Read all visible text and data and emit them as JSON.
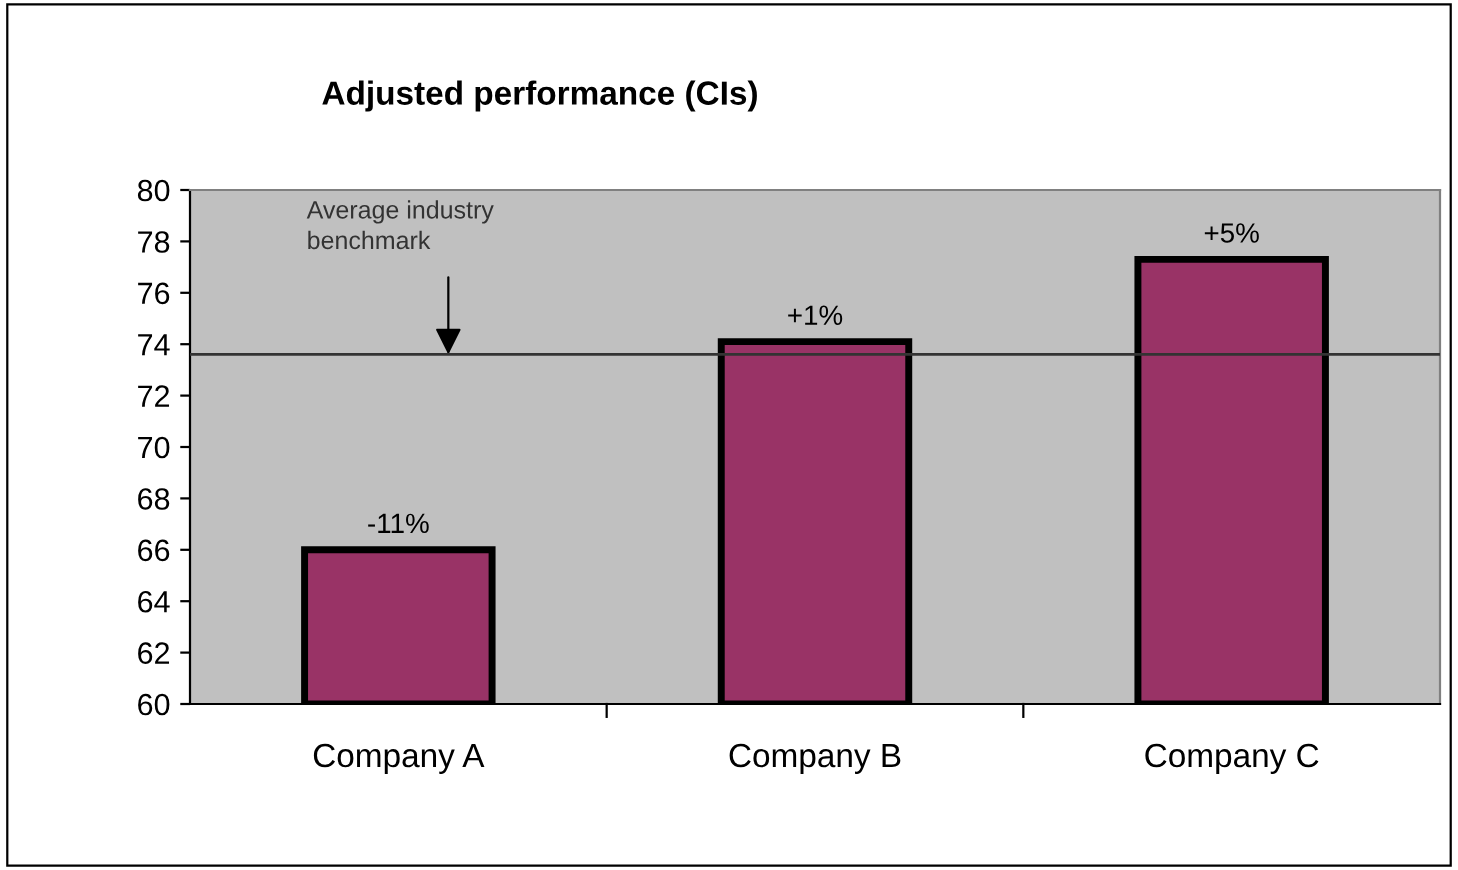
{
  "chart_data": {
    "type": "bar",
    "title": "Adjusted performance (CIs)",
    "categories": [
      "Company A",
      "Company B",
      "Company C"
    ],
    "values": [
      66,
      74.1,
      77.3
    ],
    "annotations": [
      {
        "text": "-11%",
        "x": "Company A",
        "y": 66
      },
      {
        "text": "+1%",
        "x": "Company B",
        "y": 74.1
      },
      {
        "text": "+5%",
        "x": "Company C",
        "y": 77.3
      }
    ],
    "color": "#993366",
    "ylim": [
      60,
      80
    ],
    "yticks": [
      60,
      62,
      64,
      66,
      68,
      70,
      72,
      74,
      76,
      78,
      80
    ],
    "ref_lines": [
      {
        "axis": "y",
        "value": 73.6,
        "label": "Average industry\nbenchmark",
        "color": "#333333"
      }
    ],
    "grid": false,
    "legend": false
  }
}
